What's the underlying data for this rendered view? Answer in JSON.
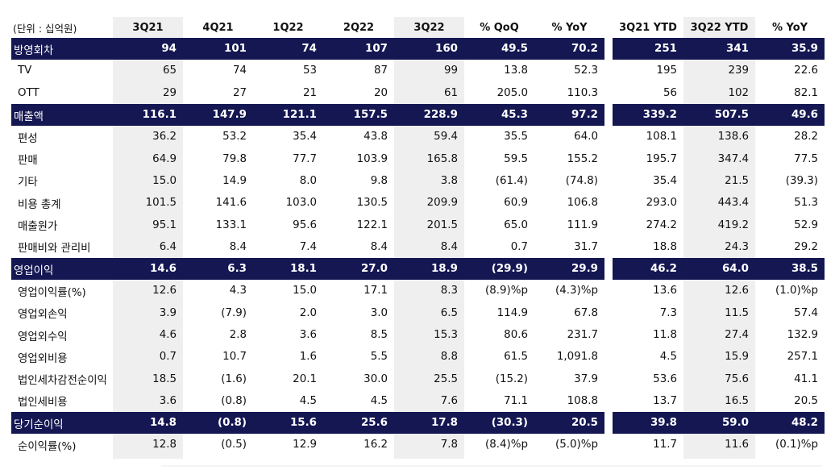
{
  "header": {
    "unit": "(단위 : 십억원)",
    "columns": [
      "3Q21",
      "4Q21",
      "1Q22",
      "2Q22",
      "3Q22",
      "% QoQ",
      "% YoY",
      "3Q21 YTD",
      "3Q22 YTD",
      "% YoY"
    ]
  },
  "rows": [
    {
      "label": "방영회차",
      "band": true,
      "values": [
        "94",
        "101",
        "74",
        "107",
        "160",
        "49.5",
        "70.2",
        "251",
        "341",
        "35.9"
      ]
    },
    {
      "label": "TV",
      "band": false,
      "values": [
        "65",
        "74",
        "53",
        "87",
        "99",
        "13.8",
        "52.3",
        "195",
        "239",
        "22.6"
      ]
    },
    {
      "label": "OTT",
      "band": false,
      "values": [
        "29",
        "27",
        "21",
        "20",
        "61",
        "205.0",
        "110.3",
        "56",
        "102",
        "82.1"
      ]
    },
    {
      "label": "매출액",
      "band": true,
      "values": [
        "116.1",
        "147.9",
        "121.1",
        "157.5",
        "228.9",
        "45.3",
        "97.2",
        "339.2",
        "507.5",
        "49.6"
      ]
    },
    {
      "label": "편성",
      "band": false,
      "values": [
        "36.2",
        "53.2",
        "35.4",
        "43.8",
        "59.4",
        "35.5",
        "64.0",
        "108.1",
        "138.6",
        "28.2"
      ]
    },
    {
      "label": "판매",
      "band": false,
      "values": [
        "64.9",
        "79.8",
        "77.7",
        "103.9",
        "165.8",
        "59.5",
        "155.2",
        "195.7",
        "347.4",
        "77.5"
      ]
    },
    {
      "label": "기타",
      "band": false,
      "values": [
        "15.0",
        "14.9",
        "8.0",
        "9.8",
        "3.8",
        "(61.4)",
        "(74.8)",
        "35.4",
        "21.5",
        "(39.3)"
      ]
    },
    {
      "label": "비용 총계",
      "band": false,
      "values": [
        "101.5",
        "141.6",
        "103.0",
        "130.5",
        "209.9",
        "60.9",
        "106.8",
        "293.0",
        "443.4",
        "51.3"
      ]
    },
    {
      "label": "매출원가",
      "band": false,
      "values": [
        "95.1",
        "133.1",
        "95.6",
        "122.1",
        "201.5",
        "65.0",
        "111.9",
        "274.2",
        "419.2",
        "52.9"
      ]
    },
    {
      "label": "판매비와 관리비",
      "band": false,
      "values": [
        "6.4",
        "8.4",
        "7.4",
        "8.4",
        "8.4",
        "0.7",
        "31.7",
        "18.8",
        "24.3",
        "29.2"
      ]
    },
    {
      "label": "영업이익",
      "band": true,
      "values": [
        "14.6",
        "6.3",
        "18.1",
        "27.0",
        "18.9",
        "(29.9)",
        "29.9",
        "46.2",
        "64.0",
        "38.5"
      ]
    },
    {
      "label": "영업이익률(%)",
      "band": false,
      "values": [
        "12.6",
        "4.3",
        "15.0",
        "17.1",
        "8.3",
        "(8.9)%p",
        "(4.3)%p",
        "13.6",
        "12.6",
        "(1.0)%p"
      ]
    },
    {
      "label": "영업외손익",
      "band": false,
      "values": [
        "3.9",
        "(7.9)",
        "2.0",
        "3.0",
        "6.5",
        "114.9",
        "67.8",
        "7.3",
        "11.5",
        "57.4"
      ]
    },
    {
      "label": "영업외수익",
      "band": false,
      "values": [
        "4.6",
        "2.8",
        "3.6",
        "8.5",
        "15.3",
        "80.6",
        "231.7",
        "11.8",
        "27.4",
        "132.9"
      ]
    },
    {
      "label": "영업외비용",
      "band": false,
      "values": [
        "0.7",
        "10.7",
        "1.6",
        "5.5",
        "8.8",
        "61.5",
        "1,091.8",
        "4.5",
        "15.9",
        "257.1"
      ]
    },
    {
      "label": "법인세차감전순이익",
      "band": false,
      "values": [
        "18.5",
        "(1.6)",
        "20.1",
        "30.0",
        "25.5",
        "(15.2)",
        "37.9",
        "53.6",
        "75.6",
        "41.1"
      ]
    },
    {
      "label": "법인세비용",
      "band": false,
      "values": [
        "3.6",
        "(0.8)",
        "4.5",
        "4.5",
        "7.6",
        "71.1",
        "108.8",
        "13.7",
        "16.5",
        "20.5"
      ]
    },
    {
      "label": "당기순이익",
      "band": true,
      "values": [
        "14.8",
        "(0.8)",
        "15.6",
        "25.6",
        "17.8",
        "(30.3)",
        "20.5",
        "39.8",
        "59.0",
        "48.2"
      ]
    },
    {
      "label": "순이익률(%)",
      "band": false,
      "values": [
        "12.8",
        "(0.5)",
        "12.9",
        "16.2",
        "7.8",
        "(8.4)%p",
        "(5.0)%p",
        "11.7",
        "11.6",
        "(0.1)%p"
      ]
    }
  ]
}
